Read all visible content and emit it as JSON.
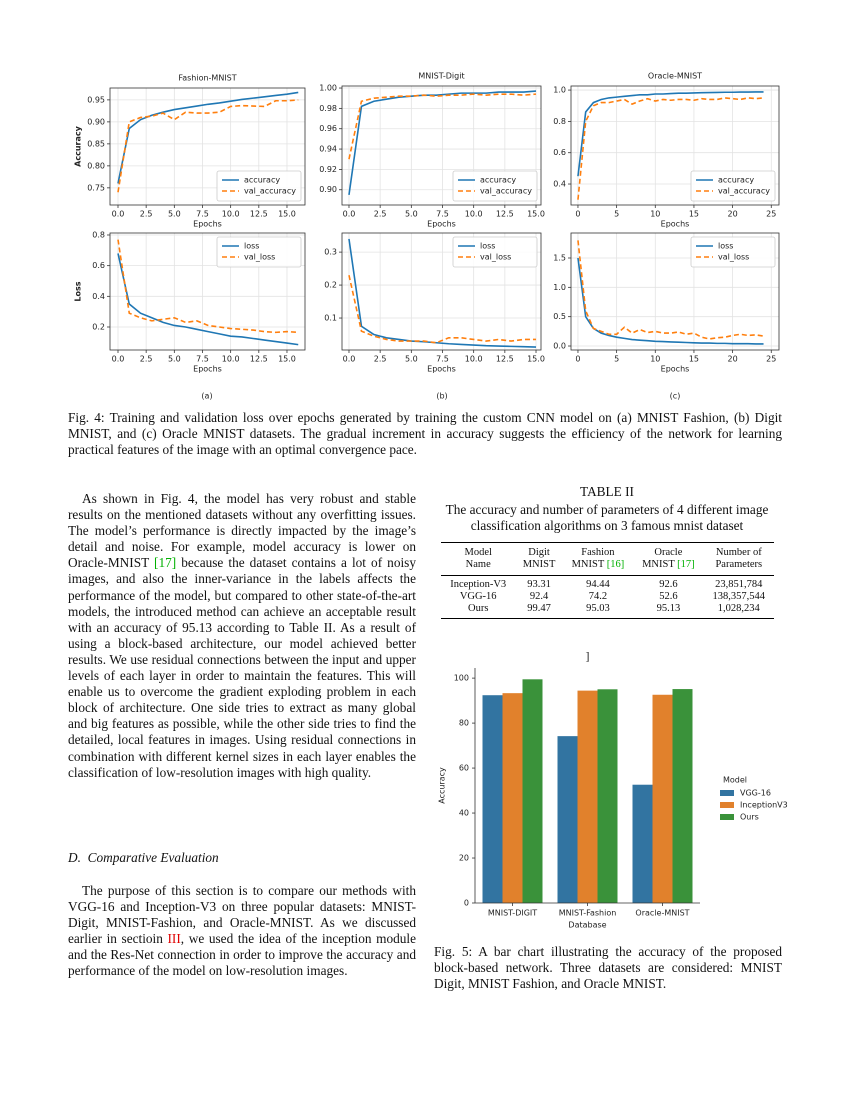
{
  "chart_data": [
    {
      "type": "line",
      "title": "Fashion-MNIST",
      "xlabel": "Epochs",
      "ylabel": "Accuracy",
      "x": [
        0,
        1,
        2,
        3,
        4,
        5,
        6,
        7,
        8,
        9,
        10,
        11,
        12,
        13,
        14,
        15,
        16
      ],
      "series": [
        {
          "name": "accuracy",
          "color": "#1f77b4",
          "linestyle": "solid",
          "values": [
            0.76,
            0.885,
            0.905,
            0.915,
            0.922,
            0.928,
            0.932,
            0.936,
            0.94,
            0.943,
            0.947,
            0.951,
            0.954,
            0.957,
            0.96,
            0.963,
            0.967
          ]
        },
        {
          "name": "val_accuracy",
          "color": "#ff7f0e",
          "linestyle": "dashed",
          "values": [
            0.74,
            0.9,
            0.91,
            0.913,
            0.92,
            0.905,
            0.922,
            0.92,
            0.92,
            0.922,
            0.935,
            0.937,
            0.936,
            0.935,
            0.948,
            0.948,
            0.95
          ]
        }
      ],
      "xlim": [
        -0.71,
        16.6
      ],
      "ylim": [
        0.711,
        0.977
      ],
      "xticks": [
        {
          "value": 0,
          "label": "0.0"
        },
        2.5,
        {
          "value": 5,
          "label": "5.0"
        },
        7.5,
        {
          "value": 10,
          "label": "10.0"
        },
        12.5,
        {
          "value": 15,
          "label": "15.0"
        }
      ],
      "yticks": [
        0.75,
        {
          "value": 0.8,
          "label": "0.80"
        },
        0.85,
        {
          "value": 0.9,
          "label": "0.90"
        },
        0.95
      ],
      "grid": true,
      "legend": "lower right"
    },
    {
      "type": "line",
      "title": "MNIST-Digit",
      "xlabel": "Epochs",
      "x": [
        0,
        1,
        2,
        3,
        4,
        5,
        6,
        7,
        8,
        9,
        10,
        11,
        12,
        13,
        14,
        15
      ],
      "series": [
        {
          "name": "accuracy",
          "color": "#1f77b4",
          "linestyle": "solid",
          "values": [
            0.895,
            0.982,
            0.987,
            0.989,
            0.991,
            0.992,
            0.993,
            0.993,
            0.994,
            0.995,
            0.995,
            0.995,
            0.996,
            0.996,
            0.996,
            0.997
          ]
        },
        {
          "name": "val_accuracy",
          "color": "#ff7f0e",
          "linestyle": "dashed",
          "values": [
            0.93,
            0.987,
            0.99,
            0.991,
            0.992,
            0.992,
            0.993,
            0.992,
            0.993,
            0.993,
            0.994,
            0.993,
            0.994,
            0.994,
            0.993,
            0.994
          ]
        }
      ],
      "xlim": [
        -0.56,
        15.4
      ],
      "ylim": [
        0.885,
        1.002
      ],
      "xticks": [
        {
          "value": 0,
          "label": "0.0"
        },
        2.5,
        {
          "value": 5,
          "label": "5.0"
        },
        7.5,
        {
          "value": 10,
          "label": "10.0"
        },
        12.5,
        {
          "value": 15,
          "label": "15.0"
        }
      ],
      "yticks": [
        {
          "value": 0.9,
          "label": "0.90"
        },
        0.92,
        0.94,
        0.96,
        0.98,
        {
          "value": 1,
          "label": "1.00"
        }
      ],
      "grid": true,
      "legend": "lower right"
    },
    {
      "type": "line",
      "title": "Oracle-MNIST",
      "xlabel": "Epochs",
      "x": [
        0,
        1,
        2,
        3,
        4,
        5,
        6,
        7,
        8,
        9,
        10,
        11,
        12,
        13,
        14,
        15,
        16,
        17,
        18,
        19,
        20,
        21,
        22,
        23,
        24
      ],
      "series": [
        {
          "name": "accuracy",
          "color": "#1f77b4",
          "linestyle": "solid",
          "values": [
            0.45,
            0.86,
            0.92,
            0.94,
            0.95,
            0.955,
            0.96,
            0.965,
            0.97,
            0.97,
            0.975,
            0.975,
            0.978,
            0.98,
            0.98,
            0.982,
            0.983,
            0.984,
            0.985,
            0.986,
            0.986,
            0.987,
            0.987,
            0.988,
            0.988
          ]
        },
        {
          "name": "val_accuracy",
          "color": "#ff7f0e",
          "linestyle": "dashed",
          "values": [
            0.3,
            0.8,
            0.9,
            0.92,
            0.92,
            0.93,
            0.94,
            0.91,
            0.93,
            0.945,
            0.93,
            0.94,
            0.935,
            0.94,
            0.94,
            0.935,
            0.945,
            0.94,
            0.94,
            0.95,
            0.945,
            0.94,
            0.95,
            0.945,
            0.95
          ]
        }
      ],
      "xlim": [
        -0.9,
        26.0
      ],
      "ylim": [
        0.266,
        1.026
      ],
      "xticks": [
        0,
        5,
        10,
        15,
        20,
        25
      ],
      "yticks": [
        0.4,
        0.6,
        0.8,
        {
          "value": 1,
          "label": "1.0"
        }
      ],
      "grid": true,
      "legend": "lower right"
    },
    {
      "type": "line",
      "xlabel": "Epochs",
      "ylabel": "Loss",
      "x": [
        0,
        1,
        2,
        3,
        4,
        5,
        6,
        7,
        8,
        9,
        10,
        11,
        12,
        13,
        14,
        15,
        16
      ],
      "series": [
        {
          "name": "loss",
          "color": "#1f77b4",
          "linestyle": "solid",
          "values": [
            0.68,
            0.35,
            0.29,
            0.26,
            0.23,
            0.21,
            0.2,
            0.185,
            0.17,
            0.155,
            0.14,
            0.135,
            0.125,
            0.115,
            0.105,
            0.095,
            0.085
          ]
        },
        {
          "name": "val_loss",
          "color": "#ff7f0e",
          "linestyle": "dashed",
          "values": [
            0.77,
            0.29,
            0.26,
            0.24,
            0.25,
            0.26,
            0.23,
            0.24,
            0.21,
            0.2,
            0.19,
            0.185,
            0.18,
            0.17,
            0.165,
            0.17,
            0.165
          ]
        }
      ],
      "xlim": [
        -0.71,
        16.6
      ],
      "ylim": [
        0.05,
        0.813
      ],
      "xticks": [
        {
          "value": 0,
          "label": "0.0"
        },
        2.5,
        {
          "value": 5,
          "label": "5.0"
        },
        7.5,
        {
          "value": 10,
          "label": "10.0"
        },
        12.5,
        {
          "value": 15,
          "label": "15.0"
        }
      ],
      "yticks": [
        0.2,
        0.4,
        0.6,
        0.8
      ],
      "grid": true,
      "legend": "upper right"
    },
    {
      "type": "line",
      "xlabel": "Epochs",
      "x": [
        0,
        1,
        2,
        3,
        4,
        5,
        6,
        7,
        8,
        9,
        10,
        11,
        12,
        13,
        14,
        15
      ],
      "series": [
        {
          "name": "loss",
          "color": "#1f77b4",
          "linestyle": "solid",
          "values": [
            0.34,
            0.075,
            0.05,
            0.04,
            0.035,
            0.03,
            0.028,
            0.025,
            0.022,
            0.02,
            0.018,
            0.016,
            0.015,
            0.014,
            0.013,
            0.012
          ]
        },
        {
          "name": "val_loss",
          "color": "#ff7f0e",
          "linestyle": "dashed",
          "values": [
            0.23,
            0.06,
            0.045,
            0.035,
            0.03,
            0.03,
            0.03,
            0.025,
            0.04,
            0.04,
            0.035,
            0.03,
            0.035,
            0.03,
            0.035,
            0.035
          ]
        }
      ],
      "xlim": [
        -0.56,
        15.4
      ],
      "ylim": [
        0.003,
        0.358
      ],
      "xticks": [
        {
          "value": 0,
          "label": "0.0"
        },
        2.5,
        {
          "value": 5,
          "label": "5.0"
        },
        7.5,
        {
          "value": 10,
          "label": "10.0"
        },
        12.5,
        {
          "value": 15,
          "label": "15.0"
        }
      ],
      "yticks": [
        0.1,
        0.2,
        0.3
      ],
      "grid": true,
      "legend": "upper right"
    },
    {
      "type": "line",
      "xlabel": "Epochs",
      "x": [
        0,
        1,
        2,
        3,
        4,
        5,
        6,
        7,
        8,
        9,
        10,
        11,
        12,
        13,
        14,
        15,
        16,
        17,
        18,
        19,
        20,
        21,
        22,
        23,
        24
      ],
      "series": [
        {
          "name": "loss",
          "color": "#1f77b4",
          "linestyle": "solid",
          "values": [
            1.5,
            0.5,
            0.3,
            0.22,
            0.18,
            0.15,
            0.13,
            0.11,
            0.1,
            0.09,
            0.08,
            0.075,
            0.07,
            0.065,
            0.06,
            0.055,
            0.05,
            0.05,
            0.045,
            0.045,
            0.04,
            0.04,
            0.04,
            0.035,
            0.035
          ]
        },
        {
          "name": "val_loss",
          "color": "#ff7f0e",
          "linestyle": "dashed",
          "values": [
            1.8,
            0.6,
            0.3,
            0.25,
            0.2,
            0.2,
            0.32,
            0.22,
            0.28,
            0.23,
            0.25,
            0.22,
            0.22,
            0.24,
            0.2,
            0.22,
            0.15,
            0.12,
            0.14,
            0.15,
            0.18,
            0.2,
            0.18,
            0.19,
            0.17
          ]
        }
      ],
      "xlim": [
        -0.9,
        26.0
      ],
      "ylim": [
        -0.068,
        1.926
      ],
      "xticks": [
        0,
        5,
        10,
        15,
        20,
        25
      ],
      "yticks": [
        {
          "value": 0,
          "label": "0.0"
        },
        0.5,
        {
          "value": 1,
          "label": "1.0"
        },
        1.5
      ],
      "grid": true,
      "legend": "upper right"
    },
    {
      "type": "bar",
      "title": "]",
      "xlabel": "Database",
      "ylabel": "Accuracy",
      "categories": [
        "MNIST-DIGIT",
        "MNIST-Fashion",
        "Oracle-MNIST"
      ],
      "legend_title": "Model",
      "series": [
        {
          "name": "VGG-16",
          "color": "#3274a1",
          "values": [
            92.4,
            74.2,
            52.6
          ]
        },
        {
          "name": "InceptionV3",
          "color": "#e1812c",
          "values": [
            93.31,
            94.44,
            92.6
          ]
        },
        {
          "name": "Ours",
          "color": "#3a923a",
          "values": [
            99.47,
            95.03,
            95.13
          ]
        }
      ],
      "ylim": [
        0,
        104.5
      ],
      "yticks": [
        0,
        20,
        40,
        60,
        80,
        100
      ],
      "grid": false,
      "legend": "outside right"
    }
  ],
  "figure4": {
    "panels": [
      "(a)",
      "(b)",
      "(c)"
    ],
    "caption": "Fig. 4: Training and validation loss over epochs generated by training the custom CNN model on (a) MNIST Fashion, (b) Digit MNIST, and (c) Oracle MNIST datasets. The gradual increment in accuracy suggests the efficiency of the network for learning practical features of the image with an optimal convergence pace."
  },
  "body": {
    "paragraph_1": [
      "As shown in Fig. 4, the model has very robust and stable results on the mentioned datasets without any overfitting issues. The model’s performance is directly impacted by the image’s detail and noise. For example, model accuracy is lower on Oracle-MNIST ",
      "[17]",
      " because the dataset contains a lot of noisy images, and also the inner-variance in the labels affects the performance of the model, but compared to other state-of-the-art models, the introduced method can achieve an acceptable result with an accuracy of 95.13 according to Table II. As a result of using a block-based architecture, our model achieved better results. We use residual connections between the input and upper levels of each layer in order to maintain the features. This will enable us to overcome the gradient exploding problem in each block of architecture. One side tries to extract as many global and big features as possible, while the other side tries to find the detailed, local features in images. Using residual connections in combination with different kernel sizes in each layer enables the classification of low-resolution images with high quality."
    ],
    "heading": "D.  Comparative Evaluation",
    "paragraph_2": [
      "The purpose of this section is to compare our methods with VGG-16 and Inception-V3 on three popular datasets: MNIST-Digit, MNIST-Fashion, and Oracle-MNIST. As we discussed earlier in sectioin ",
      "III",
      ", we used the idea of the inception module and the Res-Net connection in order to improve the accuracy and performance of the model on low-resolution images."
    ]
  },
  "table": {
    "label": "TABLE II",
    "caption": "The accuracy and number of parameters of 4 different image classification algorithms on 3 famous mnist dataset",
    "header": [
      {
        "lines": [
          "Model",
          "Name"
        ]
      },
      {
        "lines": [
          "Digit",
          "MNIST"
        ]
      },
      {
        "lines": [
          "Fashion",
          "MNIST"
        ],
        "cite": "[16]"
      },
      {
        "lines": [
          "Oracle",
          "MNIST"
        ],
        "cite": "[17]"
      },
      {
        "lines": [
          "Number of",
          "Parameters"
        ]
      }
    ],
    "rows": [
      [
        "Inception-V3",
        "93.31",
        "94.44",
        "92.6",
        "23,851,784"
      ],
      [
        "VGG-16",
        "92.4",
        "74.2",
        "52.6",
        "138,357,544"
      ],
      [
        "Ours",
        "99.47",
        "95.03",
        "95.13",
        "1,028,234"
      ]
    ]
  },
  "figure5": {
    "caption": "Fig. 5: A bar chart illustrating the accuracy of the proposed block-based network. Three datasets are considered: MNIST Digit, MNIST Fashion, and Oracle MNIST."
  }
}
